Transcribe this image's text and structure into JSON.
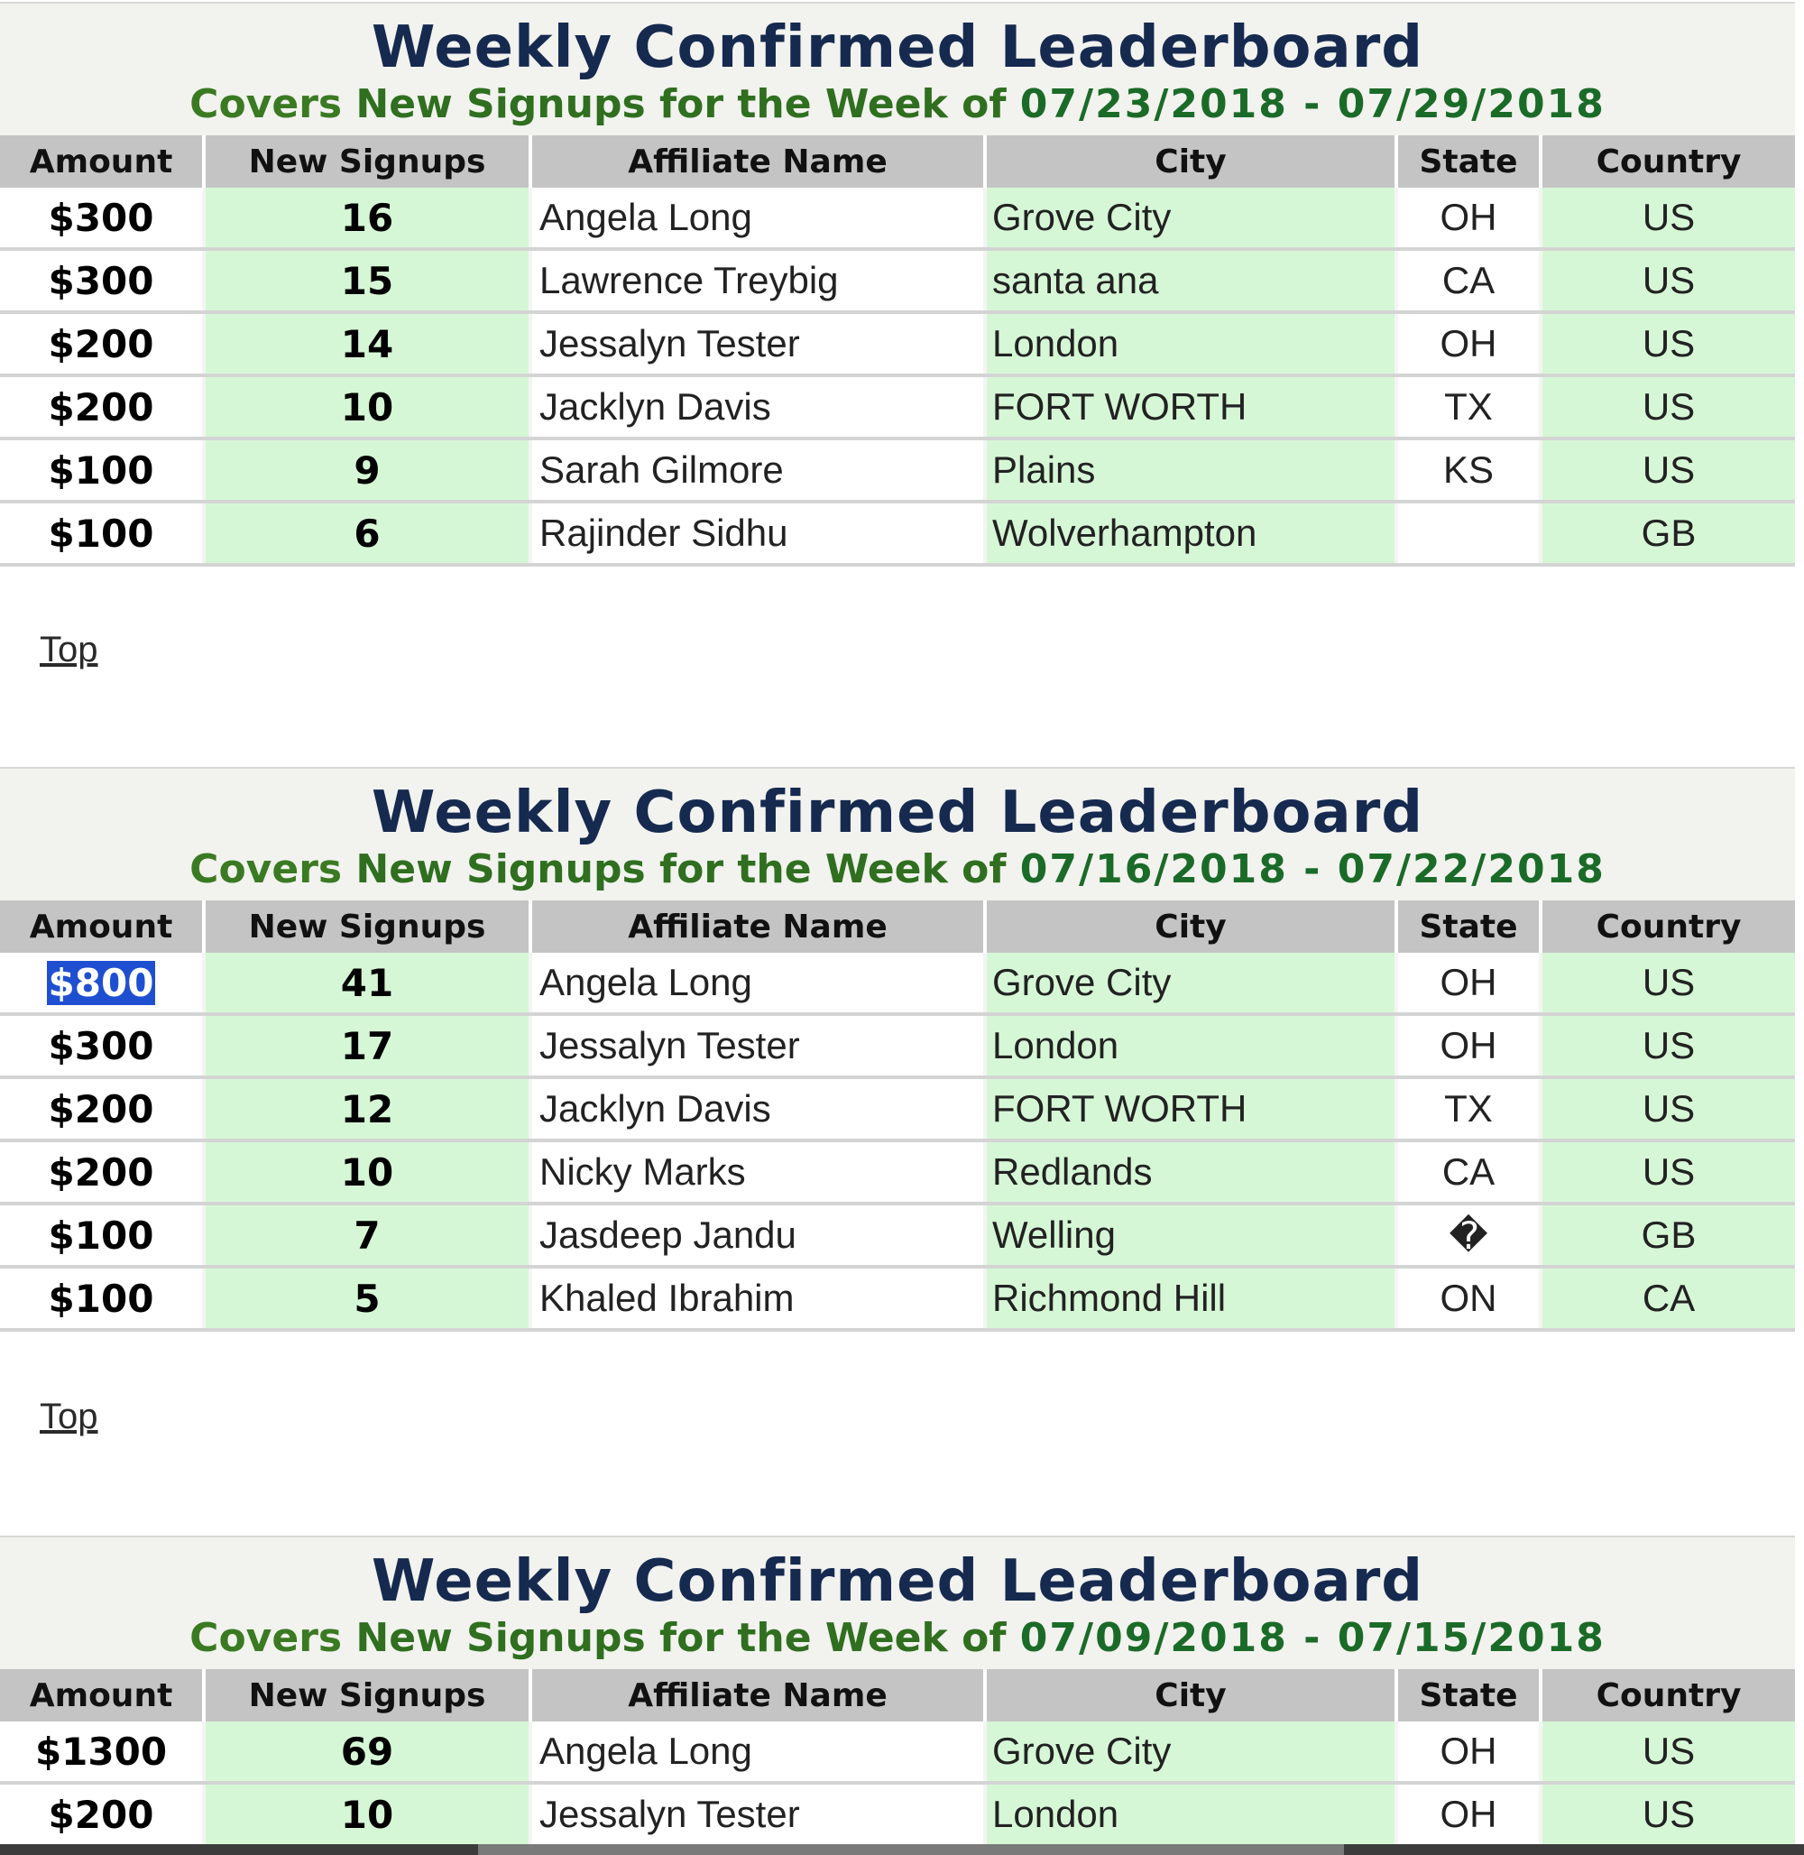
{
  "columns": [
    "Amount",
    "New Signups",
    "Affiliate Name",
    "City",
    "State",
    "Country"
  ],
  "top_link": "Top",
  "boards": [
    {
      "title": "Weekly Confirmed Leaderboard",
      "subtitle_lead": "Covers ",
      "subtitle_mid": "New Signups for the Week of ",
      "subtitle_dates": "07/23/2018 - 07/29/2018",
      "rows": [
        {
          "amount": "$300",
          "signups": "16",
          "name": "Angela Long",
          "city": "Grove City",
          "state": "OH",
          "country": "US"
        },
        {
          "amount": "$300",
          "signups": "15",
          "name": "Lawrence Treybig",
          "city": "santa ana",
          "state": "CA",
          "country": "US"
        },
        {
          "amount": "$200",
          "signups": "14",
          "name": "Jessalyn Tester",
          "city": "London",
          "state": "OH",
          "country": "US"
        },
        {
          "amount": "$200",
          "signups": "10",
          "name": "Jacklyn Davis",
          "city": "FORT WORTH",
          "state": "TX",
          "country": "US"
        },
        {
          "amount": "$100",
          "signups": "9",
          "name": "Sarah Gilmore",
          "city": "Plains",
          "state": "KS",
          "country": "US"
        },
        {
          "amount": "$100",
          "signups": "6",
          "name": "Rajinder Sidhu",
          "city": "Wolverhampton",
          "state": "",
          "country": "GB"
        }
      ]
    },
    {
      "title": "Weekly Confirmed Leaderboard",
      "subtitle_lead": "Covers ",
      "subtitle_mid": "New Signups for the Week of ",
      "subtitle_dates": "07/16/2018 - 07/22/2018",
      "rows": [
        {
          "amount": "$800",
          "signups": "41",
          "name": "Angela Long",
          "city": "Grove City",
          "state": "OH",
          "country": "US",
          "selected": true
        },
        {
          "amount": "$300",
          "signups": "17",
          "name": "Jessalyn Tester",
          "city": "London",
          "state": "OH",
          "country": "US"
        },
        {
          "amount": "$200",
          "signups": "12",
          "name": "Jacklyn Davis",
          "city": "FORT WORTH",
          "state": "TX",
          "country": "US"
        },
        {
          "amount": "$200",
          "signups": "10",
          "name": "Nicky Marks",
          "city": "Redlands",
          "state": "CA",
          "country": "US"
        },
        {
          "amount": "$100",
          "signups": "7",
          "name": "Jasdeep Jandu",
          "city": "Welling",
          "state": "�",
          "country": "GB"
        },
        {
          "amount": "$100",
          "signups": "5",
          "name": "Khaled Ibrahim",
          "city": "Richmond Hill",
          "state": "ON",
          "country": "CA"
        }
      ]
    },
    {
      "title": "Weekly Confirmed Leaderboard",
      "subtitle_lead": "Covers ",
      "subtitle_mid": "New Signups for the Week of ",
      "subtitle_dates": "07/09/2018 - 07/15/2018",
      "rows": [
        {
          "amount": "$1300",
          "signups": "69",
          "name": "Angela Long",
          "city": "Grove City",
          "state": "OH",
          "country": "US"
        },
        {
          "amount": "$200",
          "signups": "10",
          "name": "Jessalyn Tester",
          "city": "London",
          "state": "OH",
          "country": "US"
        }
      ]
    }
  ]
}
